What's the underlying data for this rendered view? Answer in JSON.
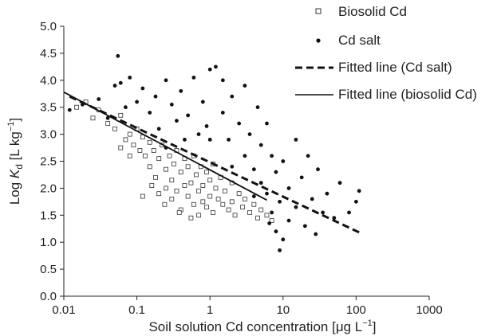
{
  "chart_data": {
    "type": "scatter",
    "title": "",
    "xlabel_prefix": "Soil solution Cd concentration [",
    "xlabel_unit_mu": "μ",
    "xlabel_unit_rest": "g L",
    "xlabel_sup": "−1",
    "xlabel_suffix": "]",
    "ylabel_log": "Log ",
    "ylabel_k": "K",
    "ylabel_sub": "d",
    "ylabel_unit": " [L kg",
    "ylabel_sup": "−1",
    "ylabel_close": "]",
    "x_scale": "log",
    "xlim": [
      0.01,
      1000
    ],
    "ylim": [
      0.0,
      5.0
    ],
    "x_ticks": [
      0.01,
      0.1,
      1,
      10,
      100,
      1000
    ],
    "x_tick_labels": [
      "0.01",
      "0.1",
      "1",
      "10",
      "100",
      "1000"
    ],
    "y_ticks": [
      0.0,
      0.5,
      1.0,
      1.5,
      2.0,
      2.5,
      3.0,
      3.5,
      4.0,
      4.5,
      5.0
    ],
    "y_tick_labels": [
      "0.0",
      "0.5",
      "1.0",
      "1.5",
      "2.0",
      "2.5",
      "3.0",
      "3.5",
      "4.0",
      "4.5",
      "5.0"
    ],
    "grid": false,
    "legend_position": "top-right",
    "series": [
      {
        "name": "Biosolid Cd",
        "marker": "open-square",
        "color": "#333333",
        "points": [
          [
            0.015,
            3.5
          ],
          [
            0.02,
            3.6
          ],
          [
            0.025,
            3.3
          ],
          [
            0.03,
            3.45
          ],
          [
            0.04,
            3.2
          ],
          [
            0.05,
            3.1
          ],
          [
            0.06,
            3.35
          ],
          [
            0.07,
            2.9
          ],
          [
            0.08,
            3.0
          ],
          [
            0.09,
            2.8
          ],
          [
            0.1,
            3.1
          ],
          [
            0.11,
            2.7
          ],
          [
            0.12,
            2.95
          ],
          [
            0.13,
            2.6
          ],
          [
            0.15,
            2.85
          ],
          [
            0.15,
            2.4
          ],
          [
            0.17,
            2.7
          ],
          [
            0.18,
            2.2
          ],
          [
            0.2,
            2.55
          ],
          [
            0.2,
            1.9
          ],
          [
            0.22,
            2.8
          ],
          [
            0.25,
            2.35
          ],
          [
            0.25,
            2.0
          ],
          [
            0.28,
            2.6
          ],
          [
            0.3,
            2.15
          ],
          [
            0.3,
            1.8
          ],
          [
            0.32,
            2.45
          ],
          [
            0.35,
            2.7
          ],
          [
            0.35,
            1.95
          ],
          [
            0.4,
            2.3
          ],
          [
            0.4,
            1.6
          ],
          [
            0.45,
            2.55
          ],
          [
            0.45,
            2.05
          ],
          [
            0.5,
            1.85
          ],
          [
            0.5,
            2.4
          ],
          [
            0.55,
            2.1
          ],
          [
            0.6,
            1.7
          ],
          [
            0.6,
            2.6
          ],
          [
            0.65,
            2.25
          ],
          [
            0.7,
            1.95
          ],
          [
            0.7,
            1.5
          ],
          [
            0.75,
            2.4
          ],
          [
            0.8,
            2.05
          ],
          [
            0.8,
            1.75
          ],
          [
            0.9,
            2.3
          ],
          [
            0.9,
            1.65
          ],
          [
            1.0,
            2.15
          ],
          [
            1.0,
            1.85
          ],
          [
            1.1,
            2.45
          ],
          [
            1.1,
            1.55
          ],
          [
            1.2,
            2.0
          ],
          [
            1.3,
            1.8
          ],
          [
            1.4,
            2.2
          ],
          [
            1.5,
            1.7
          ],
          [
            1.6,
            1.95
          ],
          [
            1.8,
            1.6
          ],
          [
            2.0,
            2.1
          ],
          [
            2.0,
            1.75
          ],
          [
            2.2,
            1.5
          ],
          [
            2.5,
            1.9
          ],
          [
            2.8,
            1.65
          ],
          [
            3.0,
            1.8
          ],
          [
            3.5,
            1.55
          ],
          [
            4.0,
            1.7
          ],
          [
            4.5,
            1.45
          ],
          [
            5.0,
            1.6
          ],
          [
            6.0,
            1.5
          ],
          [
            7.0,
            1.4
          ],
          [
            0.12,
            1.85
          ],
          [
            0.08,
            2.6
          ],
          [
            0.06,
            2.75
          ],
          [
            0.16,
            2.05
          ],
          [
            0.24,
            1.7
          ],
          [
            0.38,
            1.55
          ],
          [
            0.55,
            1.45
          ]
        ]
      },
      {
        "name": "Cd salt",
        "marker": "filled-circle",
        "color": "#111111",
        "points": [
          [
            0.012,
            3.45
          ],
          [
            0.018,
            3.55
          ],
          [
            0.03,
            3.65
          ],
          [
            0.04,
            3.3
          ],
          [
            0.05,
            3.9
          ],
          [
            0.055,
            4.45
          ],
          [
            0.06,
            3.95
          ],
          [
            0.07,
            3.5
          ],
          [
            0.08,
            4.05
          ],
          [
            0.1,
            3.6
          ],
          [
            0.12,
            3.85
          ],
          [
            0.15,
            3.4
          ],
          [
            0.18,
            3.7
          ],
          [
            0.2,
            3.1
          ],
          [
            0.25,
            4.0
          ],
          [
            0.3,
            3.55
          ],
          [
            0.35,
            3.25
          ],
          [
            0.4,
            3.8
          ],
          [
            0.5,
            3.35
          ],
          [
            0.6,
            4.05
          ],
          [
            0.7,
            3.0
          ],
          [
            0.8,
            3.6
          ],
          [
            1.0,
            4.2
          ],
          [
            1.2,
            4.25
          ],
          [
            1.5,
            3.4
          ],
          [
            1.5,
            4.0
          ],
          [
            1.8,
            2.9
          ],
          [
            2.0,
            3.7
          ],
          [
            2.5,
            3.2
          ],
          [
            3.0,
            3.9
          ],
          [
            3.0,
            2.6
          ],
          [
            3.5,
            3.0
          ],
          [
            4.0,
            2.35
          ],
          [
            4.5,
            3.5
          ],
          [
            5.0,
            2.8
          ],
          [
            5.0,
            2.1
          ],
          [
            6.0,
            3.2
          ],
          [
            6.0,
            1.9
          ],
          [
            7.0,
            2.6
          ],
          [
            7.0,
            1.55
          ],
          [
            8.0,
            2.3
          ],
          [
            8.0,
            1.2
          ],
          [
            9.0,
            0.85
          ],
          [
            9.0,
            1.75
          ],
          [
            10.0,
            2.5
          ],
          [
            10.0,
            1.05
          ],
          [
            12.0,
            2.0
          ],
          [
            12.0,
            1.4
          ],
          [
            15.0,
            2.9
          ],
          [
            15.0,
            1.65
          ],
          [
            18.0,
            2.2
          ],
          [
            20.0,
            1.3
          ],
          [
            22.0,
            2.6
          ],
          [
            25.0,
            1.8
          ],
          [
            28.0,
            1.15
          ],
          [
            30.0,
            2.35
          ],
          [
            35.0,
            1.55
          ],
          [
            40.0,
            1.9
          ],
          [
            50.0,
            1.45
          ],
          [
            60.0,
            2.1
          ],
          [
            80.0,
            1.55
          ],
          [
            100.0,
            1.75
          ],
          [
            110.0,
            1.95
          ],
          [
            1.0,
            2.9
          ],
          [
            2.0,
            2.4
          ],
          [
            0.9,
            3.15
          ],
          [
            0.45,
            2.9
          ],
          [
            0.25,
            2.75
          ],
          [
            4.0,
            1.85
          ],
          [
            6.5,
            1.35
          ]
        ]
      },
      {
        "name": "Fitted line (Cd salt)",
        "marker": "dashed-line",
        "color": "#111111",
        "line": [
          [
            0.012,
            3.7
          ],
          [
            115.0,
            1.17
          ]
        ]
      },
      {
        "name": "Fitted line (biosolid Cd)",
        "marker": "solid-line",
        "color": "#111111",
        "line": [
          [
            0.01,
            3.78
          ],
          [
            6.0,
            1.78
          ]
        ]
      }
    ]
  }
}
